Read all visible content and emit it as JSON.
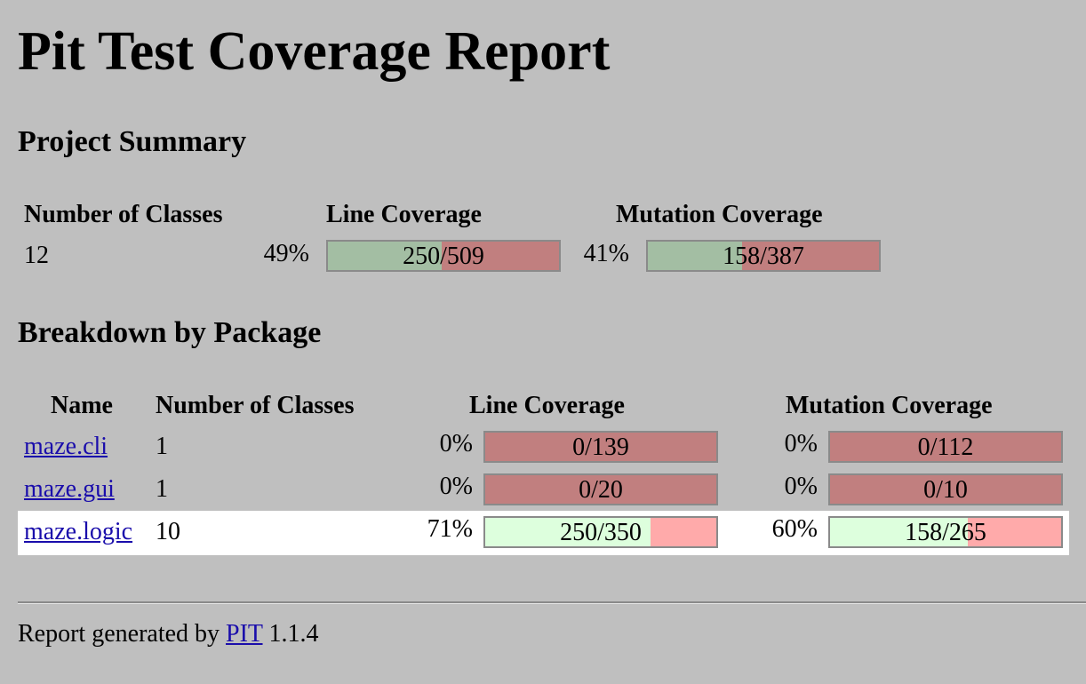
{
  "title": "Pit Test Coverage Report",
  "summary": {
    "heading": "Project Summary",
    "headers": {
      "classes": "Number of Classes",
      "line": "Line Coverage",
      "mutation": "Mutation Coverage"
    },
    "classes": "12",
    "line_pct": "49%",
    "line_ratio": "250/509",
    "line_fraction": 0.491,
    "mutation_pct": "41%",
    "mutation_ratio": "158/387",
    "mutation_fraction": 0.408
  },
  "breakdown": {
    "heading": "Breakdown by Package",
    "headers": {
      "name": "Name",
      "classes": "Number of Classes",
      "line": "Line Coverage",
      "mutation": "Mutation Coverage"
    },
    "rows": [
      {
        "name": "maze.cli",
        "classes": "1",
        "line_pct": "0%",
        "line_ratio": "0/139",
        "line_fraction": 0,
        "mutation_pct": "0%",
        "mutation_ratio": "0/112",
        "mutation_fraction": 0
      },
      {
        "name": "maze.gui",
        "classes": "1",
        "line_pct": "0%",
        "line_ratio": "0/20",
        "line_fraction": 0,
        "mutation_pct": "0%",
        "mutation_ratio": "0/10",
        "mutation_fraction": 0
      },
      {
        "name": "maze.logic",
        "classes": "10",
        "line_pct": "71%",
        "line_ratio": "250/350",
        "line_fraction": 0.714,
        "mutation_pct": "60%",
        "mutation_ratio": "158/265",
        "mutation_fraction": 0.596
      }
    ]
  },
  "footer": {
    "prefix": "Report generated by",
    "link": "PIT",
    "version": "1.1.4"
  },
  "colors": {
    "background": "#bfbfbf",
    "covered_dim": "#a3bea3",
    "uncovered_dim": "#c17f7f",
    "covered_bright": "#ddffdd",
    "uncovered_bright": "#ffaaaa",
    "highlight_row": "#ffffff",
    "link": "#1a0dab"
  }
}
